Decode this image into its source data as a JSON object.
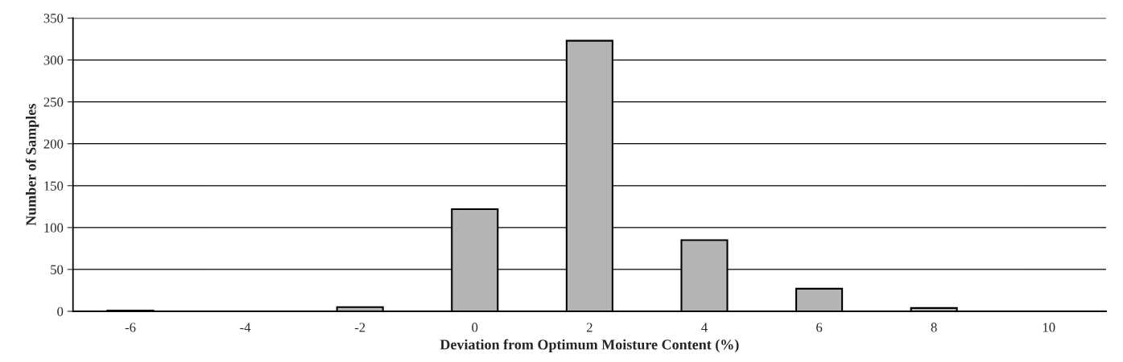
{
  "chart_data": {
    "type": "bar",
    "xlabel": "Deviation from Optimum Moisture Content (%)",
    "ylabel": "Number of Samples",
    "categories": [
      "-6",
      "-4",
      "-2",
      "0",
      "2",
      "4",
      "6",
      "8",
      "10"
    ],
    "values": [
      1,
      0,
      5,
      122,
      323,
      85,
      27,
      4,
      0
    ],
    "color": "#b4b4b4",
    "ylim": [
      0,
      350
    ],
    "yticks": [
      0,
      50,
      100,
      150,
      200,
      250,
      300,
      350
    ],
    "grid": "y",
    "legend": false
  }
}
